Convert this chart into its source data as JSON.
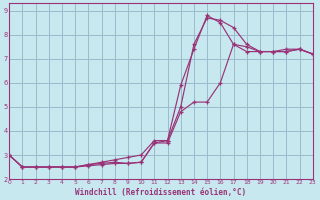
{
  "xlabel": "Windchill (Refroidissement éolien,°C)",
  "bg_color": "#c8e8f0",
  "grid_color": "#99bbcc",
  "line_color": "#993377",
  "xlim": [
    0,
    23
  ],
  "ylim": [
    2,
    9.3
  ],
  "xticks": [
    0,
    1,
    2,
    3,
    4,
    5,
    6,
    7,
    8,
    9,
    10,
    11,
    12,
    13,
    14,
    15,
    16,
    17,
    18,
    19,
    20,
    21,
    22,
    23
  ],
  "yticks": [
    2,
    3,
    4,
    5,
    6,
    7,
    8,
    9
  ],
  "curves": [
    {
      "x": [
        0,
        1,
        2,
        3,
        4,
        5,
        6,
        7,
        8,
        9,
        10,
        11,
        12,
        13,
        14,
        15,
        16,
        17,
        18,
        19,
        20,
        21,
        22,
        23
      ],
      "y": [
        3.0,
        2.5,
        2.5,
        2.5,
        2.5,
        2.5,
        2.6,
        2.7,
        2.8,
        2.9,
        3.0,
        3.6,
        3.6,
        5.0,
        7.6,
        8.7,
        8.6,
        8.3,
        7.6,
        7.3,
        7.3,
        7.4,
        7.4,
        7.2
      ]
    },
    {
      "x": [
        0,
        1,
        2,
        3,
        4,
        5,
        6,
        7,
        8,
        9,
        10,
        11,
        12,
        13,
        14,
        15,
        16,
        17,
        18,
        19,
        20,
        21,
        22,
        23
      ],
      "y": [
        3.0,
        2.5,
        2.5,
        2.5,
        2.5,
        2.5,
        2.55,
        2.6,
        2.65,
        2.65,
        2.7,
        3.5,
        3.6,
        5.9,
        7.4,
        8.8,
        8.5,
        7.6,
        7.5,
        7.3,
        7.3,
        7.3,
        7.4,
        7.2
      ]
    },
    {
      "x": [
        0,
        1,
        2,
        3,
        4,
        5,
        6,
        7,
        8,
        9,
        10,
        11,
        12,
        13,
        14,
        15,
        16,
        17,
        18,
        19,
        20,
        21,
        22,
        23
      ],
      "y": [
        3.0,
        2.5,
        2.5,
        2.5,
        2.5,
        2.5,
        2.6,
        2.65,
        2.7,
        2.65,
        2.7,
        3.5,
        3.5,
        4.8,
        5.2,
        5.2,
        6.0,
        7.6,
        7.3,
        7.3,
        7.3,
        7.3,
        7.4,
        7.2
      ]
    }
  ]
}
